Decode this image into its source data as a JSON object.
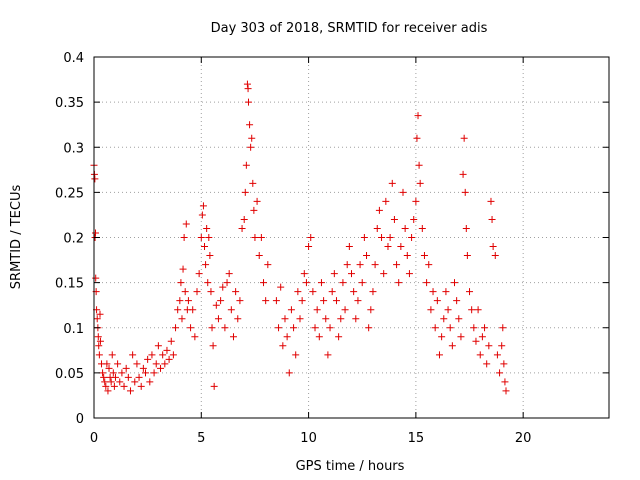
{
  "chart_data": {
    "type": "scatter",
    "title": "Day 303 of 2018, SRMTID for receiver adis",
    "xlabel": "GPS time / hours",
    "ylabel": "SRMTID / TECUs",
    "xlim": [
      0,
      24
    ],
    "ylim": [
      0,
      0.4
    ],
    "xticks": [
      0,
      5,
      10,
      15,
      20
    ],
    "xtick_labels": [
      "0",
      "5",
      "10",
      "15",
      "20"
    ],
    "yticks": [
      0,
      0.05,
      0.1,
      0.15,
      0.2,
      0.25,
      0.3,
      0.35,
      0.4
    ],
    "ytick_labels": [
      "0",
      "0.05",
      "0.1",
      "0.15",
      "0.2",
      "0.25",
      "0.3",
      "0.35",
      "0.4"
    ],
    "grid": true,
    "legend": "none",
    "marker": "plus",
    "color": "#e00000",
    "series": [
      {
        "values_note_free": true,
        "points": [
          [
            0.0,
            0.28
          ],
          [
            0.02,
            0.27
          ],
          [
            0.04,
            0.265
          ],
          [
            0.05,
            0.2
          ],
          [
            0.07,
            0.205
          ],
          [
            0.08,
            0.155
          ],
          [
            0.1,
            0.14
          ],
          [
            0.12,
            0.12
          ],
          [
            0.15,
            0.11
          ],
          [
            0.18,
            0.1
          ],
          [
            0.2,
            0.09
          ],
          [
            0.22,
            0.08
          ],
          [
            0.25,
            0.07
          ],
          [
            0.28,
            0.115
          ],
          [
            0.3,
            0.085
          ],
          [
            0.35,
            0.06
          ],
          [
            0.4,
            0.05
          ],
          [
            0.45,
            0.045
          ],
          [
            0.5,
            0.04
          ],
          [
            0.55,
            0.035
          ],
          [
            0.6,
            0.06
          ],
          [
            0.65,
            0.03
          ],
          [
            0.7,
            0.055
          ],
          [
            0.75,
            0.045
          ],
          [
            0.8,
            0.04
          ],
          [
            0.85,
            0.07
          ],
          [
            0.9,
            0.05
          ],
          [
            0.95,
            0.035
          ],
          [
            1.0,
            0.045
          ],
          [
            1.1,
            0.06
          ],
          [
            1.2,
            0.04
          ],
          [
            1.3,
            0.05
          ],
          [
            1.4,
            0.035
          ],
          [
            1.5,
            0.055
          ],
          [
            1.6,
            0.045
          ],
          [
            1.7,
            0.03
          ],
          [
            1.8,
            0.07
          ],
          [
            1.9,
            0.04
          ],
          [
            2.0,
            0.06
          ],
          [
            2.1,
            0.045
          ],
          [
            2.2,
            0.035
          ],
          [
            2.3,
            0.055
          ],
          [
            2.4,
            0.05
          ],
          [
            2.5,
            0.065
          ],
          [
            2.6,
            0.04
          ],
          [
            2.7,
            0.07
          ],
          [
            2.8,
            0.05
          ],
          [
            2.9,
            0.06
          ],
          [
            3.0,
            0.08
          ],
          [
            3.1,
            0.055
          ],
          [
            3.2,
            0.07
          ],
          [
            3.3,
            0.06
          ],
          [
            3.4,
            0.075
          ],
          [
            3.5,
            0.065
          ],
          [
            3.6,
            0.085
          ],
          [
            3.7,
            0.07
          ],
          [
            3.8,
            0.1
          ],
          [
            3.9,
            0.12
          ],
          [
            4.0,
            0.13
          ],
          [
            4.05,
            0.15
          ],
          [
            4.1,
            0.11
          ],
          [
            4.15,
            0.165
          ],
          [
            4.2,
            0.2
          ],
          [
            4.25,
            0.14
          ],
          [
            4.3,
            0.215
          ],
          [
            4.35,
            0.12
          ],
          [
            4.4,
            0.13
          ],
          [
            4.5,
            0.1
          ],
          [
            4.6,
            0.12
          ],
          [
            4.7,
            0.09
          ],
          [
            4.8,
            0.14
          ],
          [
            4.9,
            0.16
          ],
          [
            5.0,
            0.2
          ],
          [
            5.05,
            0.225
          ],
          [
            5.1,
            0.235
          ],
          [
            5.15,
            0.19
          ],
          [
            5.2,
            0.17
          ],
          [
            5.25,
            0.21
          ],
          [
            5.3,
            0.15
          ],
          [
            5.35,
            0.2
          ],
          [
            5.4,
            0.18
          ],
          [
            5.45,
            0.14
          ],
          [
            5.5,
            0.1
          ],
          [
            5.55,
            0.08
          ],
          [
            5.6,
            0.035
          ],
          [
            5.7,
            0.125
          ],
          [
            5.8,
            0.11
          ],
          [
            5.9,
            0.13
          ],
          [
            6.0,
            0.145
          ],
          [
            6.1,
            0.1
          ],
          [
            6.2,
            0.15
          ],
          [
            6.3,
            0.16
          ],
          [
            6.4,
            0.12
          ],
          [
            6.5,
            0.09
          ],
          [
            6.6,
            0.14
          ],
          [
            6.7,
            0.11
          ],
          [
            6.8,
            0.13
          ],
          [
            6.9,
            0.21
          ],
          [
            7.0,
            0.22
          ],
          [
            7.05,
            0.25
          ],
          [
            7.1,
            0.28
          ],
          [
            7.15,
            0.37
          ],
          [
            7.18,
            0.365
          ],
          [
            7.2,
            0.35
          ],
          [
            7.25,
            0.325
          ],
          [
            7.3,
            0.3
          ],
          [
            7.35,
            0.31
          ],
          [
            7.4,
            0.26
          ],
          [
            7.45,
            0.23
          ],
          [
            7.5,
            0.2
          ],
          [
            7.6,
            0.24
          ],
          [
            7.7,
            0.18
          ],
          [
            7.8,
            0.2
          ],
          [
            7.9,
            0.15
          ],
          [
            8.0,
            0.13
          ],
          [
            8.1,
            0.17
          ],
          [
            8.5,
            0.13
          ],
          [
            8.6,
            0.1
          ],
          [
            8.7,
            0.145
          ],
          [
            8.8,
            0.08
          ],
          [
            8.9,
            0.11
          ],
          [
            9.0,
            0.09
          ],
          [
            9.1,
            0.05
          ],
          [
            9.2,
            0.12
          ],
          [
            9.3,
            0.1
          ],
          [
            9.4,
            0.07
          ],
          [
            9.5,
            0.14
          ],
          [
            9.6,
            0.11
          ],
          [
            9.7,
            0.13
          ],
          [
            9.8,
            0.16
          ],
          [
            9.9,
            0.15
          ],
          [
            10.0,
            0.19
          ],
          [
            10.1,
            0.2
          ],
          [
            10.2,
            0.14
          ],
          [
            10.3,
            0.1
          ],
          [
            10.4,
            0.12
          ],
          [
            10.5,
            0.09
          ],
          [
            10.6,
            0.15
          ],
          [
            10.7,
            0.13
          ],
          [
            10.8,
            0.11
          ],
          [
            10.9,
            0.07
          ],
          [
            11.0,
            0.1
          ],
          [
            11.1,
            0.14
          ],
          [
            11.2,
            0.16
          ],
          [
            11.3,
            0.13
          ],
          [
            11.4,
            0.09
          ],
          [
            11.5,
            0.11
          ],
          [
            11.6,
            0.15
          ],
          [
            11.7,
            0.12
          ],
          [
            11.8,
            0.17
          ],
          [
            11.9,
            0.19
          ],
          [
            12.0,
            0.16
          ],
          [
            12.1,
            0.14
          ],
          [
            12.2,
            0.11
          ],
          [
            12.3,
            0.13
          ],
          [
            12.4,
            0.17
          ],
          [
            12.5,
            0.15
          ],
          [
            12.6,
            0.2
          ],
          [
            12.7,
            0.18
          ],
          [
            12.8,
            0.1
          ],
          [
            12.9,
            0.12
          ],
          [
            13.0,
            0.14
          ],
          [
            13.1,
            0.17
          ],
          [
            13.2,
            0.21
          ],
          [
            13.3,
            0.23
          ],
          [
            13.4,
            0.2
          ],
          [
            13.5,
            0.16
          ],
          [
            13.6,
            0.24
          ],
          [
            13.7,
            0.19
          ],
          [
            13.8,
            0.2
          ],
          [
            13.9,
            0.26
          ],
          [
            14.0,
            0.22
          ],
          [
            14.1,
            0.17
          ],
          [
            14.2,
            0.15
          ],
          [
            14.3,
            0.19
          ],
          [
            14.4,
            0.25
          ],
          [
            14.5,
            0.21
          ],
          [
            14.6,
            0.18
          ],
          [
            14.7,
            0.16
          ],
          [
            14.8,
            0.2
          ],
          [
            14.9,
            0.22
          ],
          [
            15.0,
            0.24
          ],
          [
            15.05,
            0.31
          ],
          [
            15.1,
            0.335
          ],
          [
            15.15,
            0.28
          ],
          [
            15.2,
            0.26
          ],
          [
            15.3,
            0.21
          ],
          [
            15.4,
            0.18
          ],
          [
            15.5,
            0.15
          ],
          [
            15.6,
            0.17
          ],
          [
            15.7,
            0.12
          ],
          [
            15.8,
            0.14
          ],
          [
            15.9,
            0.1
          ],
          [
            16.0,
            0.13
          ],
          [
            16.1,
            0.07
          ],
          [
            16.2,
            0.09
          ],
          [
            16.3,
            0.11
          ],
          [
            16.4,
            0.14
          ],
          [
            16.5,
            0.12
          ],
          [
            16.6,
            0.1
          ],
          [
            16.7,
            0.08
          ],
          [
            16.8,
            0.15
          ],
          [
            16.9,
            0.13
          ],
          [
            17.0,
            0.11
          ],
          [
            17.1,
            0.09
          ],
          [
            17.2,
            0.27
          ],
          [
            17.25,
            0.31
          ],
          [
            17.3,
            0.25
          ],
          [
            17.35,
            0.21
          ],
          [
            17.4,
            0.18
          ],
          [
            17.5,
            0.14
          ],
          [
            17.6,
            0.12
          ],
          [
            17.7,
            0.1
          ],
          [
            17.8,
            0.085
          ],
          [
            17.9,
            0.12
          ],
          [
            18.0,
            0.07
          ],
          [
            18.1,
            0.09
          ],
          [
            18.2,
            0.1
          ],
          [
            18.3,
            0.06
          ],
          [
            18.4,
            0.08
          ],
          [
            18.5,
            0.24
          ],
          [
            18.55,
            0.22
          ],
          [
            18.6,
            0.19
          ],
          [
            18.7,
            0.18
          ],
          [
            18.8,
            0.07
          ],
          [
            18.9,
            0.05
          ],
          [
            19.0,
            0.08
          ],
          [
            19.05,
            0.1
          ],
          [
            19.1,
            0.06
          ],
          [
            19.15,
            0.04
          ],
          [
            19.2,
            0.03
          ]
        ]
      }
    ]
  }
}
